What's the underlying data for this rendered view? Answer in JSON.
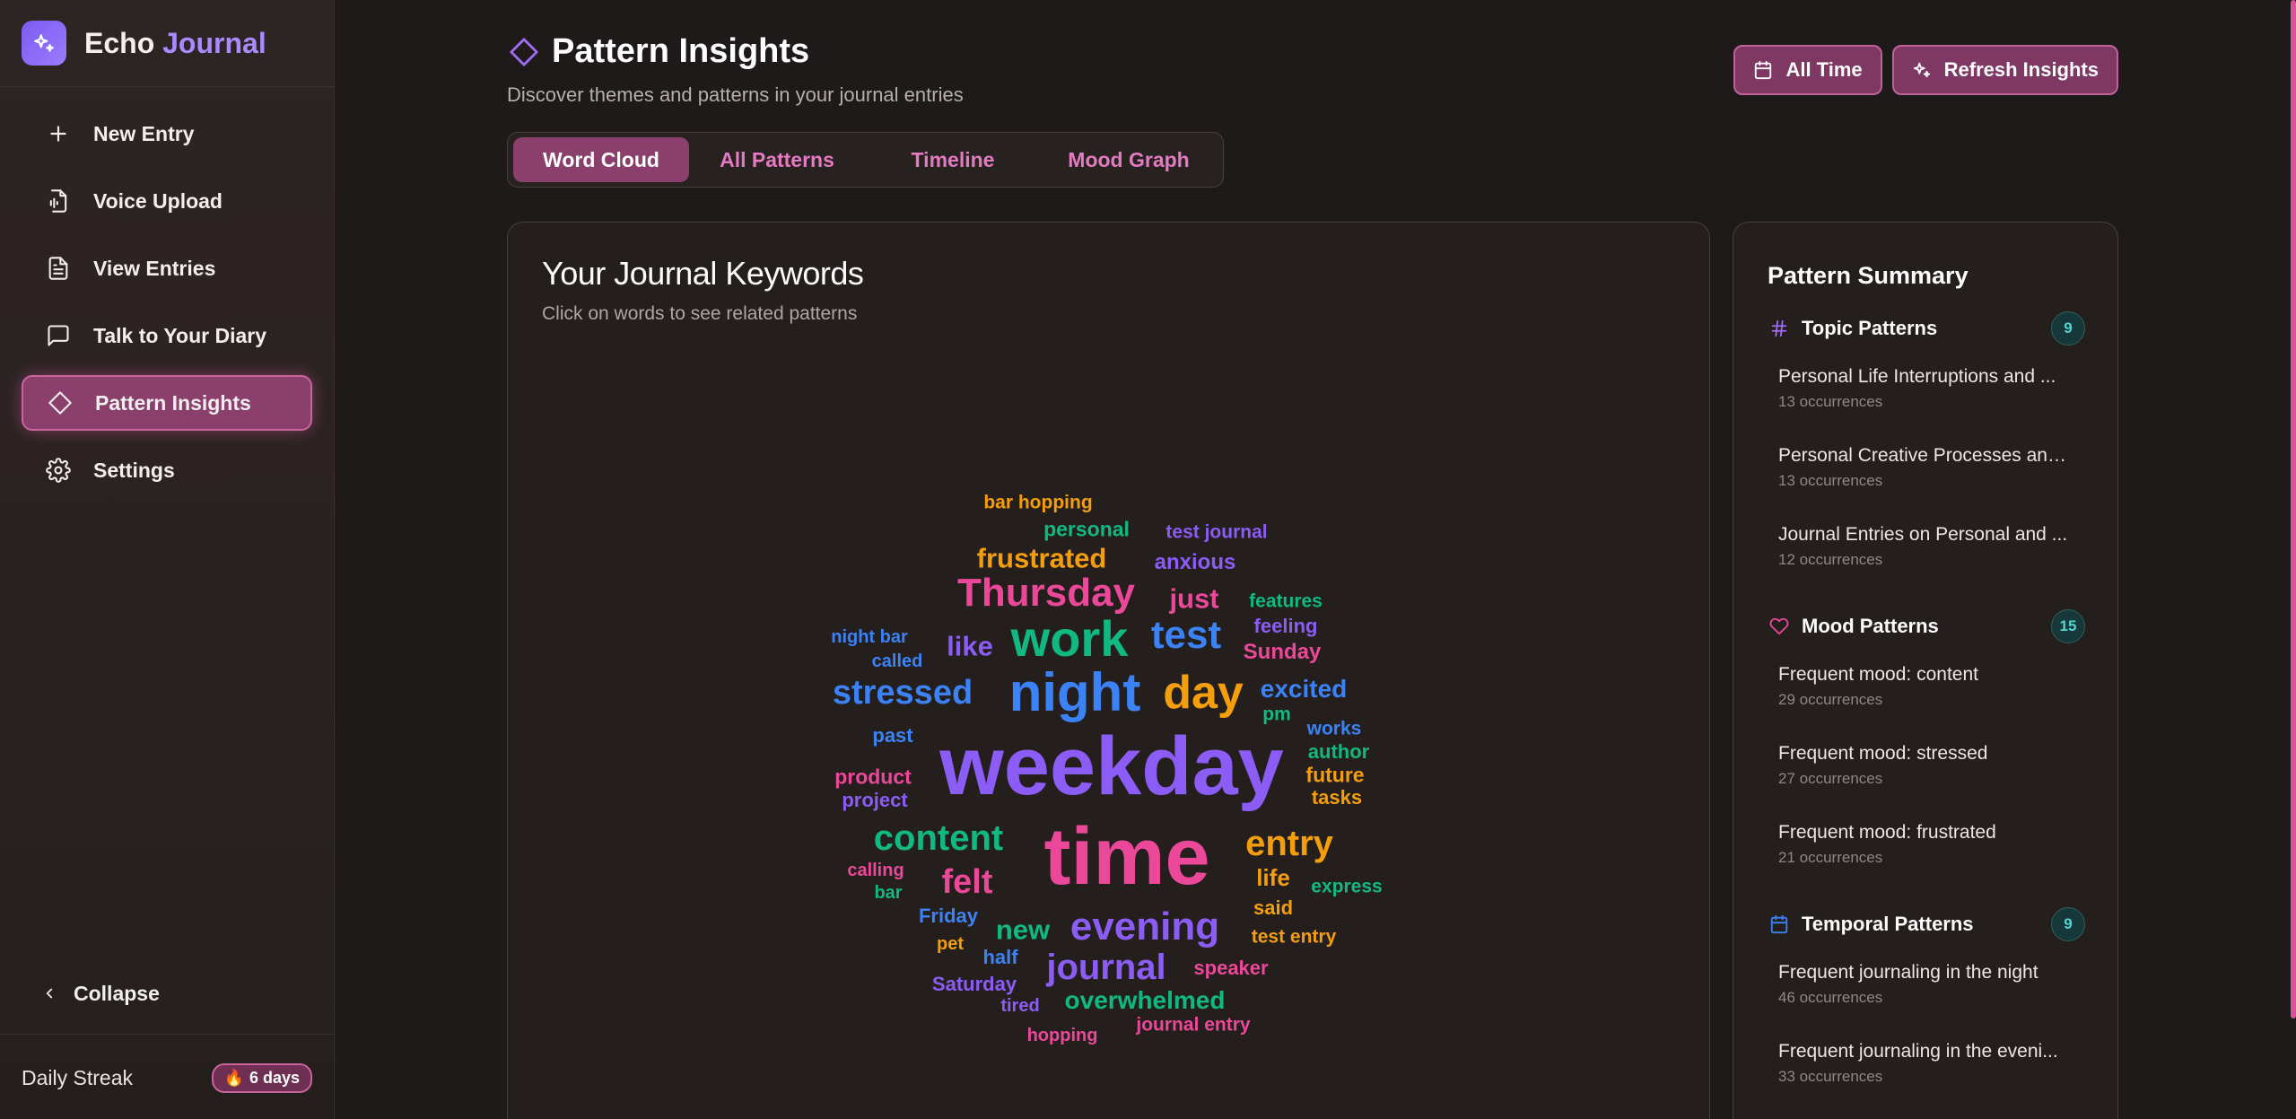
{
  "brand": {
    "name_part1": "Echo",
    "name_part2": "Journal"
  },
  "sidebar": {
    "items": [
      {
        "label": "New Entry",
        "icon": "plus-icon"
      },
      {
        "label": "Voice Upload",
        "icon": "voice-file-icon"
      },
      {
        "label": "View Entries",
        "icon": "document-icon"
      },
      {
        "label": "Talk to Your Diary",
        "icon": "chat-icon"
      },
      {
        "label": "Pattern Insights",
        "icon": "diamond-icon",
        "active": true
      },
      {
        "label": "Settings",
        "icon": "gear-icon"
      }
    ],
    "collapse_label": "Collapse",
    "streak_label": "Daily Streak",
    "streak_value": "6 days"
  },
  "header": {
    "title": "Pattern Insights",
    "subtitle": "Discover themes and patterns in your journal entries",
    "actions": {
      "time_range": "All Time",
      "refresh": "Refresh Insights"
    }
  },
  "tabs": [
    {
      "label": "Word Cloud",
      "active": true
    },
    {
      "label": "All Patterns"
    },
    {
      "label": "Timeline"
    },
    {
      "label": "Mood Graph"
    }
  ],
  "colors": {
    "accent": "#8a3f6c",
    "purple": "#8b5cf6",
    "pink": "#ec4899",
    "green": "#10b981",
    "blue": "#3b82f6",
    "orange": "#f59e0b"
  },
  "word_cloud": {
    "title": "Your Journal Keywords",
    "subtitle": "Click on words to see related patterns",
    "words": [
      {
        "text": "weekday",
        "color": "purple",
        "size": 92
      },
      {
        "text": "time",
        "color": "pink",
        "size": 90
      },
      {
        "text": "night",
        "color": "blue",
        "size": 60
      },
      {
        "text": "work",
        "color": "green",
        "size": 56
      },
      {
        "text": "day",
        "color": "orange",
        "size": 52
      },
      {
        "text": "Thursday",
        "color": "pink",
        "size": 44
      },
      {
        "text": "test",
        "color": "blue",
        "size": 44
      },
      {
        "text": "stressed",
        "color": "blue",
        "size": 38
      },
      {
        "text": "content",
        "color": "green",
        "size": 40
      },
      {
        "text": "entry",
        "color": "orange",
        "size": 40
      },
      {
        "text": "evening",
        "color": "purple",
        "size": 44
      },
      {
        "text": "journal",
        "color": "purple",
        "size": 40
      },
      {
        "text": "felt",
        "color": "pink",
        "size": 38
      },
      {
        "text": "frustrated",
        "color": "orange",
        "size": 31
      },
      {
        "text": "just",
        "color": "pink",
        "size": 31
      },
      {
        "text": "like",
        "color": "purple",
        "size": 31
      },
      {
        "text": "excited",
        "color": "blue",
        "size": 28
      },
      {
        "text": "new",
        "color": "green",
        "size": 31
      },
      {
        "text": "overwhelmed",
        "color": "green",
        "size": 28
      },
      {
        "text": "anxious",
        "color": "purple",
        "size": 24
      },
      {
        "text": "personal",
        "color": "green",
        "size": 23
      },
      {
        "text": "bar hopping",
        "color": "orange",
        "size": 21
      },
      {
        "text": "test journal",
        "color": "purple",
        "size": 21
      },
      {
        "text": "features",
        "color": "green",
        "size": 21
      },
      {
        "text": "feeling",
        "color": "purple",
        "size": 22
      },
      {
        "text": "Sunday",
        "color": "pink",
        "size": 24
      },
      {
        "text": "night bar",
        "color": "blue",
        "size": 20
      },
      {
        "text": "called",
        "color": "blue",
        "size": 20
      },
      {
        "text": "pm",
        "color": "green",
        "size": 21
      },
      {
        "text": "past",
        "color": "blue",
        "size": 22
      },
      {
        "text": "works",
        "color": "blue",
        "size": 21
      },
      {
        "text": "author",
        "color": "green",
        "size": 22
      },
      {
        "text": "future",
        "color": "orange",
        "size": 23
      },
      {
        "text": "tasks",
        "color": "orange",
        "size": 22
      },
      {
        "text": "product",
        "color": "pink",
        "size": 23
      },
      {
        "text": "project",
        "color": "purple",
        "size": 22
      },
      {
        "text": "calling",
        "color": "pink",
        "size": 20
      },
      {
        "text": "bar",
        "color": "green",
        "size": 20
      },
      {
        "text": "life",
        "color": "orange",
        "size": 26
      },
      {
        "text": "express",
        "color": "green",
        "size": 21
      },
      {
        "text": "Friday",
        "color": "blue",
        "size": 22
      },
      {
        "text": "said",
        "color": "orange",
        "size": 22
      },
      {
        "text": "pet",
        "color": "orange",
        "size": 20
      },
      {
        "text": "test entry",
        "color": "orange",
        "size": 21
      },
      {
        "text": "half",
        "color": "blue",
        "size": 22
      },
      {
        "text": "speaker",
        "color": "pink",
        "size": 22
      },
      {
        "text": "Saturday",
        "color": "purple",
        "size": 22
      },
      {
        "text": "tired",
        "color": "purple",
        "size": 20
      },
      {
        "text": "journal entry",
        "color": "pink",
        "size": 21
      },
      {
        "text": "hopping",
        "color": "pink",
        "size": 20
      }
    ]
  },
  "summary": {
    "title": "Pattern Summary",
    "groups": [
      {
        "name": "Topic Patterns",
        "icon": "hash-icon",
        "count": "9",
        "items": [
          {
            "name": "Personal Life Interruptions and ...",
            "sub": "13 occurrences"
          },
          {
            "name": "Personal Creative Processes and...",
            "sub": "13 occurrences"
          },
          {
            "name": "Journal Entries on Personal and ...",
            "sub": "12 occurrences"
          }
        ]
      },
      {
        "name": "Mood Patterns",
        "icon": "heart-icon",
        "count": "15",
        "items": [
          {
            "name": "Frequent mood: content",
            "sub": "29 occurrences"
          },
          {
            "name": "Frequent mood: stressed",
            "sub": "27 occurrences"
          },
          {
            "name": "Frequent mood: frustrated",
            "sub": "21 occurrences"
          }
        ]
      },
      {
        "name": "Temporal Patterns",
        "icon": "calendar-icon",
        "count": "9",
        "items": [
          {
            "name": "Frequent journaling in the night",
            "sub": "46 occurrences"
          },
          {
            "name": "Frequent journaling in the eveni...",
            "sub": "33 occurrences"
          }
        ]
      }
    ]
  }
}
